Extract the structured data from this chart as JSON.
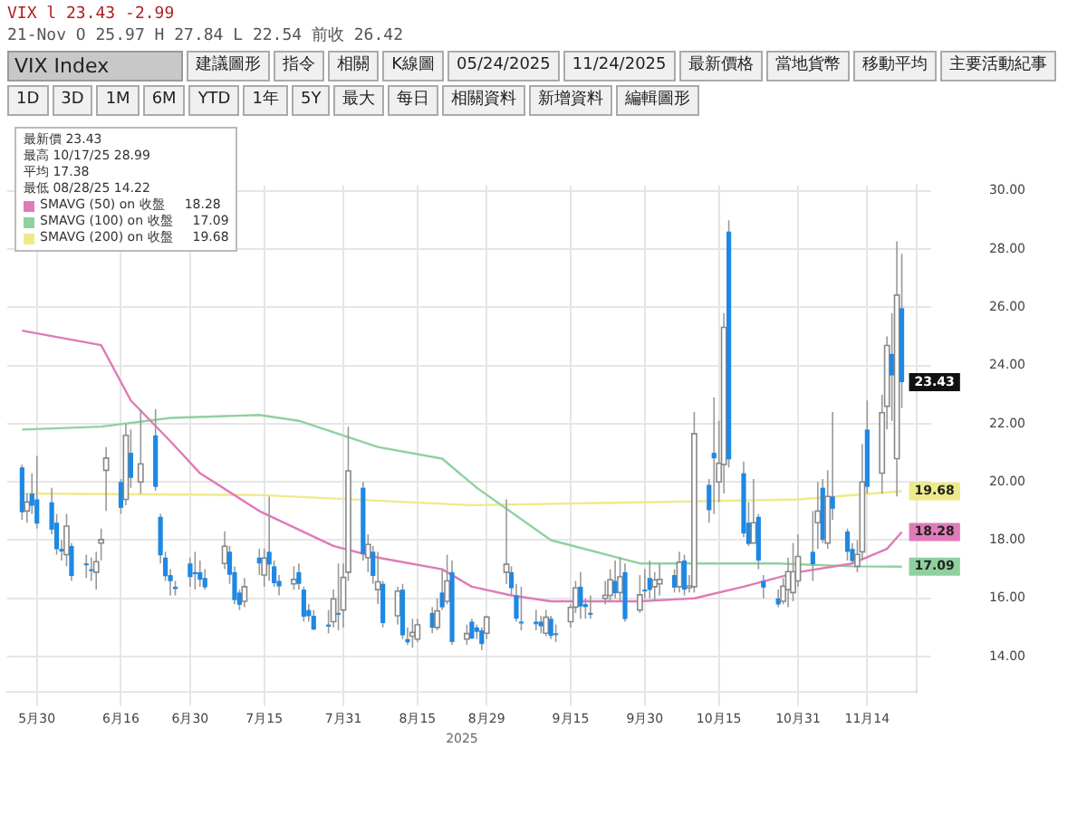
{
  "chart_data": [
    {
      "type": "other",
      "title": "VIX Index",
      "annotations": [
        "VIX l 23.43 -2.99",
        "21-Nov O 25.97 H 27.84 L 22.54 前收 26.42",
        "建議圖形",
        "指令",
        "相關",
        "K線圖",
        "05/24/2025",
        "11/24/2025",
        "最新價格",
        "當地貨幣",
        "移動平均",
        "主要活動紀事",
        "1D",
        "3D",
        "1M",
        "6M",
        "YTD",
        "1年",
        "5Y",
        "最大",
        "每日",
        "相關資料",
        "新增資料",
        "編輯圖形"
      ]
    },
    {
      "type": "candlestick",
      "xlabel": "2025",
      "colors": [
        "#1e88e5",
        "#ffffff",
        "#1e88e5",
        "#1e88e5",
        "#1e88e5",
        "#1e88e5",
        "#1e88e5",
        "#ffffff",
        "#1e88e5",
        "#1e88e5",
        "#1e88e5",
        "#ffffff",
        "#ffffff",
        "#ffffff",
        "#1e88e5",
        "#ffffff",
        "#1e88e5",
        "#ffffff",
        "#1e88e5",
        "#1e88e5",
        "#1e88e5",
        "#1e88e5",
        "#1e88e5",
        "#1e88e5",
        "#1e88e5",
        "#1e88e5",
        "#1e88e5",
        "#ffffff",
        "#1e88e5",
        "#1e88e5",
        "#1e88e5",
        "#ffffff",
        "#1e88e5",
        "#ffffff",
        "#1e88e5",
        "#1e88e5",
        "#1e88e5",
        "#ffffff",
        "#1e88e5",
        "#1e88e5",
        "#1e88e5",
        "#1e88e5",
        "#1e88e5",
        "#ffffff",
        "#1e88e5",
        "#ffffff",
        "#ffffff",
        "#1e88e5",
        "#ffffff",
        "#1e88e5",
        "#ffffff",
        "#1e88e5",
        "#ffffff",
        "#1e88e5",
        "#1e88e5",
        "#ffffff",
        "#ffffff",
        "#1e88e5",
        "#ffffff",
        "#1e88e5",
        "#ffffff",
        "#1e88e5",
        "#ffffff",
        "#1e88e5",
        "#1e88e5",
        "#1e88e5",
        "#ffffff",
        "#ffffff",
        "#1e88e5",
        "#1e88e5",
        "#1e88e5",
        "#1e88e5",
        "#1e88e5",
        "#ffffff",
        "#1e88e5",
        "#1e88e5",
        "#ffffff",
        "#ffffff",
        "#1e88e5",
        "#1e88e5",
        "#1e88e5",
        "#ffffff",
        "#ffffff",
        "#1e88e5",
        "#ffffff",
        "#1e88e5",
        "#ffffff",
        "#1e88e5",
        "#1e88e5",
        "#ffffff",
        "#ffffff",
        "#1e88e5",
        "#ffffff",
        "#1e88e5",
        "#ffffff",
        "#ffffff",
        "#1e88e5",
        "#1e88e5",
        "#ffffff",
        "#ffffff",
        "#1e88e5",
        "#1e88e5",
        "#1e88e5",
        "#ffffff",
        "#1e88e5",
        "#1e88e5",
        "#1e88e5",
        "#ffffff",
        "#ffffff",
        "#ffffff",
        "#ffffff",
        "#1e88e5",
        "#ffffff",
        "#1e88e5",
        "#ffffff",
        "#1e88e5",
        "#1e88e5",
        "#1e88e5",
        "#ffffff",
        "#ffffff",
        "#1e88e5",
        "#ffffff",
        "#ffffff",
        "#1e88e5",
        "#ffffff",
        "#1e88e5"
      ],
      "grid": true,
      "legend": "top left",
      "marker": "none",
      "x": [
        "2025-05-27",
        "2025-05-28",
        "2025-05-29",
        "2025-05-30",
        "2025-06-02",
        "2025-06-03",
        "2025-06-04",
        "2025-06-05",
        "2025-06-06",
        "2025-06-09",
        "2025-06-10",
        "2025-06-11",
        "2025-06-12",
        "2025-06-13",
        "2025-06-16",
        "2025-06-17",
        "2025-06-18",
        "2025-06-20",
        "2025-06-23",
        "2025-06-24",
        "2025-06-25",
        "2025-06-26",
        "2025-06-27",
        "2025-06-30",
        "2025-07-01",
        "2025-07-02",
        "2025-07-03",
        "2025-07-07",
        "2025-07-08",
        "2025-07-09",
        "2025-07-10",
        "2025-07-11",
        "2025-07-14",
        "2025-07-15",
        "2025-07-16",
        "2025-07-17",
        "2025-07-18",
        "2025-07-21",
        "2025-07-22",
        "2025-07-23",
        "2025-07-24",
        "2025-07-25",
        "2025-07-28",
        "2025-07-29",
        "2025-07-30",
        "2025-07-31",
        "2025-08-01",
        "2025-08-04",
        "2025-08-05",
        "2025-08-06",
        "2025-08-07",
        "2025-08-08",
        "2025-08-11",
        "2025-08-12",
        "2025-08-13",
        "2025-08-14",
        "2025-08-15",
        "2025-08-18",
        "2025-08-19",
        "2025-08-20",
        "2025-08-21",
        "2025-08-22",
        "2025-08-25",
        "2025-08-26",
        "2025-08-27",
        "2025-08-28",
        "2025-08-29",
        "2025-09-02",
        "2025-09-03",
        "2025-09-04",
        "2025-09-05",
        "2025-09-08",
        "2025-09-09",
        "2025-09-10",
        "2025-09-11",
        "2025-09-12",
        "2025-09-15",
        "2025-09-16",
        "2025-09-17",
        "2025-09-18",
        "2025-09-19",
        "2025-09-22",
        "2025-09-23",
        "2025-09-24",
        "2025-09-25",
        "2025-09-26",
        "2025-09-29",
        "2025-09-30",
        "2025-10-01",
        "2025-10-02",
        "2025-10-03",
        "2025-10-06",
        "2025-10-07",
        "2025-10-08",
        "2025-10-09",
        "2025-10-10",
        "2025-10-13",
        "2025-10-14",
        "2025-10-15",
        "2025-10-16",
        "2025-10-17",
        "2025-10-20",
        "2025-10-21",
        "2025-10-22",
        "2025-10-23",
        "2025-10-24",
        "2025-10-27",
        "2025-10-28",
        "2025-10-29",
        "2025-10-30",
        "2025-10-31",
        "2025-11-03",
        "2025-11-04",
        "2025-11-05",
        "2025-11-06",
        "2025-11-07",
        "2025-11-10",
        "2025-11-11",
        "2025-11-12",
        "2025-11-13",
        "2025-11-14",
        "2025-11-17",
        "2025-11-18",
        "2025-11-19",
        "2025-11-20",
        "2025-11-21"
      ],
      "ohlc": [
        [
          20.5,
          20.6,
          18.7,
          18.96
        ],
        [
          19.0,
          19.6,
          18.6,
          19.31
        ],
        [
          19.6,
          20.3,
          18.9,
          19.18
        ],
        [
          19.4,
          20.9,
          18.4,
          18.57
        ],
        [
          19.3,
          19.8,
          18.2,
          18.36
        ],
        [
          18.6,
          18.9,
          17.5,
          17.69
        ],
        [
          17.7,
          18.0,
          17.3,
          17.61
        ],
        [
          17.5,
          18.9,
          17.1,
          18.48
        ],
        [
          17.8,
          17.9,
          16.6,
          16.77
        ],
        [
          17.2,
          17.5,
          16.7,
          17.16
        ],
        [
          17.0,
          17.4,
          16.6,
          16.95
        ],
        [
          16.9,
          17.6,
          16.3,
          17.26
        ],
        [
          17.9,
          18.4,
          17.3,
          18.02
        ],
        [
          20.4,
          21.2,
          19.0,
          20.82
        ],
        [
          20.0,
          20.1,
          18.9,
          19.11
        ],
        [
          19.4,
          22.0,
          19.2,
          21.6
        ],
        [
          21.0,
          21.8,
          19.8,
          20.14
        ],
        [
          20.0,
          22.5,
          19.6,
          20.62
        ],
        [
          21.6,
          22.5,
          19.7,
          19.83
        ],
        [
          18.8,
          18.9,
          17.2,
          17.48
        ],
        [
          17.4,
          17.6,
          16.6,
          16.76
        ],
        [
          16.8,
          17.0,
          16.1,
          16.59
        ],
        [
          16.4,
          16.6,
          16.1,
          16.32
        ],
        [
          17.2,
          17.4,
          16.4,
          16.73
        ],
        [
          16.9,
          17.6,
          16.3,
          16.83
        ],
        [
          16.9,
          17.3,
          16.4,
          16.64
        ],
        [
          16.7,
          17.0,
          16.3,
          16.38
        ],
        [
          17.2,
          18.3,
          17.0,
          17.79
        ],
        [
          17.6,
          17.8,
          16.5,
          16.81
        ],
        [
          16.9,
          17.1,
          15.8,
          15.94
        ],
        [
          16.2,
          16.3,
          15.6,
          15.78
        ],
        [
          15.9,
          16.7,
          15.7,
          16.4
        ],
        [
          17.4,
          17.7,
          16.8,
          17.2
        ],
        [
          16.8,
          17.7,
          16.4,
          17.38
        ],
        [
          17.6,
          19.5,
          16.6,
          17.16
        ],
        [
          17.1,
          17.3,
          16.4,
          16.52
        ],
        [
          16.6,
          16.8,
          16.1,
          16.41
        ],
        [
          16.5,
          17.1,
          16.3,
          16.65
        ],
        [
          16.9,
          17.2,
          16.3,
          16.5
        ],
        [
          16.3,
          16.4,
          15.2,
          15.37
        ],
        [
          15.6,
          15.8,
          15.2,
          15.39
        ],
        [
          15.4,
          15.6,
          14.9,
          14.93
        ],
        [
          15.1,
          15.6,
          14.8,
          15.03
        ],
        [
          15.2,
          16.3,
          15.0,
          15.98
        ],
        [
          15.5,
          17.2,
          14.9,
          15.48
        ],
        [
          15.6,
          17.2,
          15.0,
          16.72
        ],
        [
          16.9,
          21.9,
          16.6,
          20.38
        ],
        [
          19.8,
          20.0,
          17.3,
          17.52
        ],
        [
          17.4,
          18.2,
          16.9,
          17.85
        ],
        [
          17.6,
          17.8,
          16.5,
          16.77
        ],
        [
          16.3,
          17.6,
          15.8,
          16.57
        ],
        [
          16.5,
          16.6,
          15.0,
          15.15
        ],
        [
          15.4,
          16.4,
          15.1,
          16.25
        ],
        [
          16.3,
          16.5,
          14.6,
          14.73
        ],
        [
          14.6,
          15.0,
          14.4,
          14.49
        ],
        [
          14.7,
          15.3,
          14.3,
          14.83
        ],
        [
          14.6,
          15.3,
          14.5,
          15.09
        ],
        [
          15.5,
          15.7,
          14.8,
          14.99
        ],
        [
          15.0,
          16.0,
          14.9,
          15.57
        ],
        [
          16.2,
          17.0,
          15.6,
          15.69
        ],
        [
          15.9,
          17.5,
          15.8,
          16.6
        ],
        [
          16.9,
          17.3,
          14.4,
          14.5
        ],
        [
          14.6,
          15.1,
          14.4,
          14.79
        ],
        [
          15.2,
          15.3,
          14.6,
          14.62
        ],
        [
          15.0,
          15.1,
          14.6,
          14.85
        ],
        [
          14.9,
          15.0,
          14.22,
          14.43
        ],
        [
          14.8,
          15.4,
          14.6,
          15.36
        ],
        [
          16.9,
          19.4,
          16.5,
          17.17
        ],
        [
          16.9,
          17.1,
          16.1,
          16.35
        ],
        [
          16.1,
          16.5,
          15.2,
          15.3
        ],
        [
          15.2,
          16.4,
          14.9,
          15.18
        ],
        [
          15.2,
          15.6,
          14.9,
          15.11
        ],
        [
          15.2,
          15.4,
          14.8,
          15.04
        ],
        [
          14.8,
          15.6,
          14.7,
          15.35
        ],
        [
          15.3,
          15.4,
          14.6,
          14.71
        ],
        [
          14.8,
          15.1,
          14.5,
          14.76
        ],
        [
          15.2,
          15.8,
          15.0,
          15.69
        ],
        [
          15.7,
          16.6,
          15.5,
          16.36
        ],
        [
          16.4,
          16.9,
          15.3,
          15.72
        ],
        [
          15.8,
          16.0,
          15.3,
          15.7
        ],
        [
          15.5,
          16.1,
          15.3,
          15.45
        ],
        [
          16.0,
          16.6,
          15.8,
          16.1
        ],
        [
          16.1,
          17.0,
          15.9,
          16.64
        ],
        [
          16.6,
          17.3,
          16.0,
          16.18
        ],
        [
          16.2,
          17.4,
          15.9,
          16.74
        ],
        [
          16.9,
          17.2,
          15.2,
          15.29
        ],
        [
          15.6,
          16.8,
          15.5,
          16.12
        ],
        [
          16.3,
          17.0,
          16.0,
          16.28
        ],
        [
          16.7,
          17.3,
          16.0,
          16.29
        ],
        [
          16.4,
          16.9,
          15.9,
          16.63
        ],
        [
          16.5,
          17.2,
          16.1,
          16.65
        ],
        [
          16.8,
          17.0,
          16.2,
          16.37
        ],
        [
          16.4,
          17.6,
          16.2,
          17.24
        ],
        [
          17.3,
          17.5,
          16.1,
          16.3
        ],
        [
          16.4,
          16.8,
          16.2,
          16.43
        ],
        [
          16.4,
          22.4,
          16.2,
          21.66
        ],
        [
          19.9,
          20.1,
          18.6,
          19.03
        ],
        [
          21.0,
          22.9,
          18.9,
          20.81
        ],
        [
          20.0,
          22.1,
          19.3,
          20.64
        ],
        [
          20.6,
          25.8,
          19.6,
          25.31
        ],
        [
          28.6,
          28.99,
          20.5,
          20.78
        ],
        [
          20.3,
          20.7,
          18.1,
          18.23
        ],
        [
          18.6,
          19.3,
          17.8,
          17.87
        ],
        [
          17.9,
          20.1,
          17.9,
          18.6
        ],
        [
          18.8,
          18.9,
          17.0,
          17.3
        ],
        [
          16.6,
          16.8,
          16.0,
          16.37
        ],
        [
          16.0,
          16.3,
          15.7,
          15.79
        ],
        [
          15.9,
          16.7,
          15.8,
          16.42
        ],
        [
          16.3,
          17.4,
          15.7,
          16.92
        ],
        [
          16.2,
          17.9,
          15.9,
          16.91
        ],
        [
          16.6,
          18.2,
          16.4,
          17.44
        ],
        [
          17.6,
          19.0,
          16.6,
          17.17
        ],
        [
          18.6,
          20.0,
          17.7,
          19.0
        ],
        [
          19.8,
          20.1,
          17.9,
          18.01
        ],
        [
          17.9,
          20.4,
          17.7,
          19.5
        ],
        [
          19.5,
          22.4,
          18.7,
          19.08
        ],
        [
          18.3,
          18.4,
          17.3,
          17.6
        ],
        [
          17.7,
          17.9,
          17.2,
          17.28
        ],
        [
          17.1,
          18.0,
          16.9,
          17.51
        ],
        [
          17.6,
          21.3,
          17.3,
          20.0
        ],
        [
          21.8,
          22.8,
          19.6,
          19.83
        ],
        [
          20.3,
          23.0,
          19.6,
          22.38
        ],
        [
          22.6,
          25.0,
          21.8,
          24.69
        ],
        [
          24.4,
          25.8,
          22.1,
          23.66
        ],
        [
          20.8,
          28.27,
          19.5,
          26.42
        ],
        [
          25.97,
          27.84,
          22.54,
          23.43
        ]
      ],
      "series": [
        {
          "type": "line",
          "name": "SMAVG (50) on 收盤",
          "color": "#e07ab8",
          "x": [
            "2025-05-27",
            "2025-06-12",
            "2025-06-18",
            "2025-06-26",
            "2025-07-02",
            "2025-07-14",
            "2025-07-29",
            "2025-08-07",
            "2025-08-20",
            "2025-08-26",
            "2025-09-03",
            "2025-09-11",
            "2025-09-29",
            "2025-10-10",
            "2025-10-20",
            "2025-10-31",
            "2025-11-11",
            "2025-11-18",
            "2025-11-21"
          ],
          "values": [
            25.2,
            24.7,
            22.8,
            21.4,
            20.3,
            19.0,
            17.8,
            17.4,
            17.0,
            16.4,
            16.1,
            15.9,
            15.9,
            16.0,
            16.4,
            16.9,
            17.2,
            17.7,
            18.28
          ],
          "value_labels": [
            null,
            null,
            null,
            null,
            null,
            null,
            null,
            null,
            null,
            null,
            null,
            null,
            null,
            null,
            null,
            null,
            null,
            null,
            "18.28"
          ]
        },
        {
          "type": "line",
          "name": "SMAVG (100) on 收盤",
          "color": "#8fd19e",
          "x": [
            "2025-05-27",
            "2025-06-12",
            "2025-06-26",
            "2025-07-14",
            "2025-07-22",
            "2025-08-07",
            "2025-08-20",
            "2025-08-27",
            "2025-09-11",
            "2025-09-29",
            "2025-10-10",
            "2025-10-27",
            "2025-11-11",
            "2025-11-21"
          ],
          "values": [
            21.8,
            21.9,
            22.2,
            22.3,
            22.1,
            21.2,
            20.8,
            19.8,
            18.0,
            17.2,
            17.2,
            17.2,
            17.1,
            17.09
          ],
          "value_labels": [
            null,
            null,
            null,
            null,
            null,
            null,
            null,
            null,
            null,
            null,
            null,
            null,
            null,
            "17.09"
          ]
        },
        {
          "type": "line",
          "name": "SMAVG (200) on 收盤",
          "color": "#eeea8a",
          "x": [
            "2025-05-27",
            "2025-07-14",
            "2025-08-26",
            "2025-09-29",
            "2025-10-31",
            "2025-11-21"
          ],
          "values": [
            19.6,
            19.55,
            19.2,
            19.3,
            19.4,
            19.68
          ],
          "value_labels": [
            null,
            null,
            null,
            null,
            null,
            "19.68"
          ]
        }
      ],
      "value_labels": [
        null,
        null,
        null,
        null,
        null,
        null,
        null,
        null,
        null,
        null,
        null,
        null,
        null,
        null,
        null,
        null,
        null,
        null,
        null,
        null,
        null,
        null,
        null,
        null,
        null,
        null,
        null,
        null,
        null,
        null,
        null,
        null,
        null,
        null,
        null,
        null,
        null,
        null,
        null,
        null,
        null,
        null,
        null,
        null,
        null,
        null,
        null,
        null,
        null,
        null,
        null,
        null,
        null,
        null,
        null,
        null,
        null,
        null,
        null,
        null,
        null,
        null,
        null,
        null,
        null,
        null,
        null,
        null,
        null,
        null,
        null,
        null,
        null,
        null,
        null,
        null,
        null,
        null,
        null,
        null,
        null,
        null,
        null,
        null,
        null,
        null,
        null,
        null,
        null,
        null,
        null,
        null,
        null,
        null,
        null,
        null,
        null,
        null,
        null,
        null,
        null,
        null,
        null,
        null,
        null,
        null,
        null,
        null,
        null,
        null,
        null,
        null,
        null,
        null,
        null,
        null,
        null,
        null,
        null,
        null,
        null,
        null,
        null,
        null,
        null,
        "23.43"
      ],
      "xlim": [
        "2025-05-24",
        "2025-11-24"
      ],
      "xticks": [
        {
          "value": "2025-05-30",
          "label": "5月30"
        },
        {
          "value": "2025-06-16",
          "label": "6月16"
        },
        {
          "value": "2025-06-30",
          "label": "6月30"
        },
        {
          "value": "2025-07-15",
          "label": "7月15"
        },
        {
          "value": "2025-07-31",
          "label": "7月31"
        },
        {
          "value": "2025-08-15",
          "label": "8月15"
        },
        {
          "value": "2025-08-29",
          "label": "8月29"
        },
        {
          "value": "2025-09-15",
          "label": "9月15"
        },
        {
          "value": "2025-09-30",
          "label": "9月30"
        },
        {
          "value": "2025-10-15",
          "label": "10月15"
        },
        {
          "value": "2025-10-31",
          "label": "10月31"
        },
        {
          "value": "2025-11-14",
          "label": "11月14"
        }
      ],
      "ylim": [
        12.8,
        30.2
      ],
      "yticks": [
        {
          "value": 14,
          "label": "14.00"
        },
        {
          "value": 16,
          "label": "16.00"
        },
        {
          "value": 18,
          "label": "18.00"
        },
        {
          "value": 20,
          "label": "20.00"
        },
        {
          "value": 22,
          "label": "22.00"
        },
        {
          "value": 24,
          "label": "24.00"
        },
        {
          "value": 26,
          "label": "26.00"
        },
        {
          "value": 28,
          "label": "28.00"
        },
        {
          "value": 30,
          "label": "30.00"
        }
      ],
      "annotations": [
        "最新價 23.43",
        "最高 10/17/25 28.99",
        "平均 17.38",
        "最低 08/28/25 14.22"
      ]
    }
  ]
}
